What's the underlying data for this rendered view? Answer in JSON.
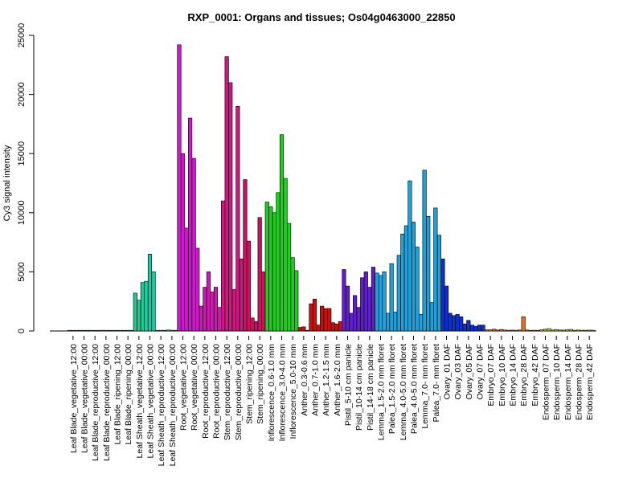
{
  "chart_data": {
    "type": "bar",
    "title": "RXP_0001: Organs and tissues; Os04g0463000_22850",
    "xlabel": "",
    "ylabel": "Cy3 signal intensity",
    "ylim": [
      0,
      25000
    ],
    "yticks": [
      0,
      5000,
      10000,
      15000,
      20000,
      25000
    ],
    "ytick_labels": [
      "0",
      "5000",
      "10000",
      "15000",
      "20000",
      "25000"
    ],
    "grid": false,
    "x_labels": [
      "Leaf Blade_vegetative_12:00",
      "Leaf Blade_vegetative_00:00",
      "Leaf Blade_reproductive_12:00",
      "Leaf Blade_reproductive_00:00",
      "Leaf Blade_ripening_12:00",
      "Leaf Blade_ripening_00:00",
      "Leaf Sheath_vegetative_12:00",
      "Leaf Sheath_vegetative_00:00",
      "Leaf Sheath_reproductive_12:00",
      "Leaf Sheath_reproductive_00:00",
      "Root_vegetative_12:00",
      "Root_vegetative_00:00",
      "Root_reproductive_12:00",
      "Root_reproductive_00:00",
      "Stem_reproductive_12:00",
      "Stem_reproductive_00:00",
      "Stem_ripening_12:00",
      "Stem_ripening_00:00",
      "Inflorescence_0.6-1.0 mm",
      "Inflorescence_3.0-4.0 mm",
      "Inflorescence_5.0-10 mm",
      "Anther_0.3-0.6 mm",
      "Anther_0.7-1.0 mm",
      "Anther_1.2-1.5 mm",
      "Anther_1.6-2.0 mm",
      "Pistil_5-10 cm panicle",
      "Pistil_10-14 cm panicle",
      "Pistil_14-18 cm panicle",
      "Lemma_1.5-2.0 mm floret",
      "Palea_1.5-2.0 mm floret",
      "Lemma_4.0-5.0 mm floret",
      "Palea_4.0-5.0 mm floret",
      "Lemma_7.0- mm floret",
      "Palea_7.0- mm floret",
      "Ovary_01 DAF",
      "Ovary_03 DAF",
      "Ovary_05 DAF",
      "Ovary_07 DAF",
      "Embryo_07 DAF",
      "Embryo_10 DAF",
      "Embryo_14 DAF",
      "Embryo_28 DAF",
      "Embryo_42 DAF",
      "Endosperm_07 DAF",
      "Endosperm_10 DAF",
      "Endosperm_14 DAF",
      "Endosperm_28 DAF",
      "Endosperm_42 DAF"
    ],
    "label_skip_note_hidden": "",
    "groups": [
      {
        "color": "#39a639",
        "values": [
          40,
          50,
          40
        ]
      },
      {
        "color": "#39a639",
        "values": [
          30,
          40,
          30
        ]
      },
      {
        "color": "#3daa5a",
        "values": [
          40,
          40,
          30
        ]
      },
      {
        "color": "#3daa5a",
        "values": [
          60,
          50,
          40
        ]
      },
      {
        "color": "#3cb070",
        "values": [
          30,
          40,
          30
        ]
      },
      {
        "color": "#3cb070",
        "values": [
          40,
          30,
          40
        ]
      },
      {
        "color": "#20c890",
        "values": [
          3200,
          2600,
          4100
        ]
      },
      {
        "color": "#20c8a0",
        "values": [
          4200,
          6500,
          5000
        ]
      },
      {
        "color": "#20c0b0",
        "values": [
          40,
          30,
          40
        ]
      },
      {
        "color": "#20c0b0",
        "values": [
          80,
          60,
          50
        ]
      },
      {
        "color": "#cc19cc",
        "values": [
          24200,
          15000,
          8700
        ]
      },
      {
        "color": "#cc19cc",
        "values": [
          18000,
          14600,
          7000
        ]
      },
      {
        "color": "#cc19b0",
        "values": [
          2100,
          3700,
          5000
        ]
      },
      {
        "color": "#cc19b0",
        "values": [
          3300,
          3700,
          2000
        ]
      },
      {
        "color": "#cc1980",
        "values": [
          11000,
          23200,
          21000
        ]
      },
      {
        "color": "#cc1980",
        "values": [
          3500,
          19000,
          6100
        ]
      },
      {
        "color": "#cc1060",
        "values": [
          12800,
          7600,
          1100
        ]
      },
      {
        "color": "#cc1060",
        "values": [
          800,
          9600,
          5000
        ]
      },
      {
        "color": "#20cc20",
        "values": [
          10900,
          10500,
          10000
        ]
      },
      {
        "color": "#20cc20",
        "values": [
          11700,
          16600,
          12900
        ]
      },
      {
        "color": "#20cc20",
        "values": [
          9100,
          6200,
          5100
        ]
      },
      {
        "color": "#c81010",
        "values": [
          300,
          350,
          30
        ]
      },
      {
        "color": "#c81010",
        "values": [
          2300,
          2700,
          500
        ]
      },
      {
        "color": "#c81010",
        "values": [
          2100,
          1900,
          1900
        ]
      },
      {
        "color": "#c81010",
        "values": [
          700,
          600,
          800
        ]
      },
      {
        "color": "#6020c8",
        "values": [
          5200,
          3800,
          1500
        ]
      },
      {
        "color": "#6020c8",
        "values": [
          3000,
          2000,
          4500
        ]
      },
      {
        "color": "#6020c8",
        "values": [
          5000,
          3700,
          5400
        ]
      },
      {
        "color": "#20a0d8",
        "values": [
          4900,
          4700,
          5000
        ]
      },
      {
        "color": "#20a0d8",
        "values": [
          1500,
          5700,
          1600
        ]
      },
      {
        "color": "#20a0d8",
        "values": [
          6400,
          8200,
          8900
        ]
      },
      {
        "color": "#20a0d8",
        "values": [
          12700,
          9200,
          7100
        ]
      },
      {
        "color": "#20a0d8",
        "values": [
          1400,
          13600,
          9700
        ]
      },
      {
        "color": "#20a0d8",
        "values": [
          2400,
          10400,
          8100
        ]
      },
      {
        "color": "#1030c8",
        "values": [
          6100,
          3800,
          1500
        ]
      },
      {
        "color": "#1030c8",
        "values": [
          1300,
          1400,
          1200
        ]
      },
      {
        "color": "#1030c8",
        "values": [
          600,
          900,
          500
        ]
      },
      {
        "color": "#1030c8",
        "values": [
          400,
          500,
          500
        ]
      },
      {
        "color": "#e07020",
        "values": [
          100,
          100,
          150
        ]
      },
      {
        "color": "#e07020",
        "values": [
          80,
          130,
          80
        ]
      },
      {
        "color": "#e07020",
        "values": [
          60,
          70,
          60
        ]
      },
      {
        "color": "#e07020",
        "values": [
          80,
          1200,
          80
        ]
      },
      {
        "color": "#e07020",
        "values": [
          50,
          60,
          50
        ]
      },
      {
        "color": "#a8c830",
        "values": [
          100,
          150,
          200
        ]
      },
      {
        "color": "#a8c830",
        "values": [
          80,
          120,
          80
        ]
      },
      {
        "color": "#a8c830",
        "values": [
          70,
          100,
          130
        ]
      },
      {
        "color": "#a8c830",
        "values": [
          60,
          80,
          60
        ]
      },
      {
        "color": "#a8c830",
        "values": [
          60,
          70,
          60
        ]
      }
    ]
  }
}
